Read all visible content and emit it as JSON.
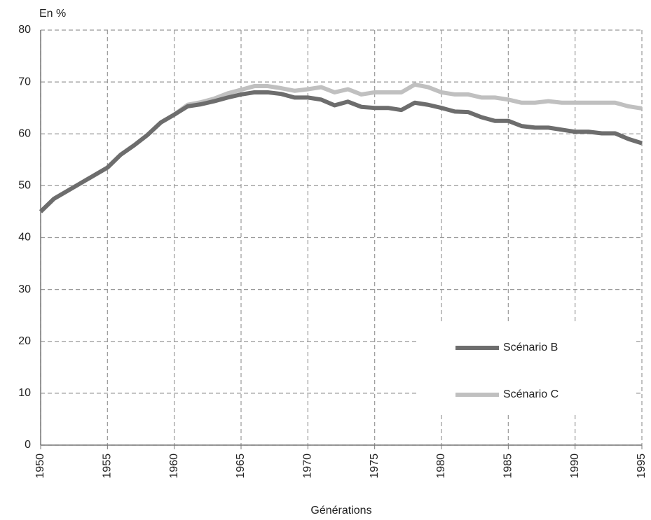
{
  "chart_data": {
    "type": "line",
    "y_label": "En %",
    "x_label": "Générations",
    "x": [
      1950,
      1951,
      1952,
      1953,
      1954,
      1955,
      1956,
      1957,
      1958,
      1959,
      1960,
      1961,
      1962,
      1963,
      1964,
      1965,
      1966,
      1967,
      1968,
      1969,
      1970,
      1971,
      1972,
      1973,
      1974,
      1975,
      1976,
      1977,
      1978,
      1979,
      1980,
      1981,
      1982,
      1983,
      1984,
      1985,
      1986,
      1987,
      1988,
      1989,
      1990,
      1991,
      1992,
      1993,
      1994,
      1995
    ],
    "series": [
      {
        "name": "Scénario B",
        "color": "#6d6d6d",
        "values": [
          45,
          47.5,
          49,
          50.5,
          52,
          53.5,
          56,
          57.8,
          59.8,
          62.2,
          63.7,
          65.3,
          65.7,
          66.3,
          67,
          67.6,
          68,
          68,
          67.7,
          67,
          67,
          66.6,
          65.5,
          66.2,
          65.2,
          65,
          65,
          64.6,
          66,
          65.6,
          65,
          64.3,
          64.2,
          63.2,
          62.5,
          62.5,
          61.5,
          61.2,
          61.2,
          60.8,
          60.4,
          60.4,
          60.1,
          60.1,
          59,
          58.2
        ]
      },
      {
        "name": "Scénario C",
        "color": "#c0c0c0",
        "values": [
          45,
          47.5,
          49,
          50.5,
          52,
          53.5,
          56,
          57.8,
          59.8,
          62.2,
          63.7,
          65.6,
          66.1,
          66.8,
          67.8,
          68.5,
          69.2,
          69.2,
          68.8,
          68.3,
          68.6,
          69,
          68,
          68.6,
          67.6,
          68,
          68,
          68,
          69.5,
          69,
          68,
          67.6,
          67.6,
          67,
          67,
          66.6,
          66,
          66,
          66.3,
          66,
          66,
          66,
          66,
          66,
          65.3,
          64.9
        ]
      }
    ],
    "xlim": [
      1950,
      1995
    ],
    "xticks": [
      1950,
      1955,
      1960,
      1965,
      1970,
      1975,
      1980,
      1985,
      1990,
      1995
    ],
    "ylim": [
      0,
      80
    ],
    "yticks": [
      0,
      10,
      20,
      30,
      40,
      50,
      60,
      70,
      80
    ],
    "grid": true,
    "legend": "lower right"
  }
}
